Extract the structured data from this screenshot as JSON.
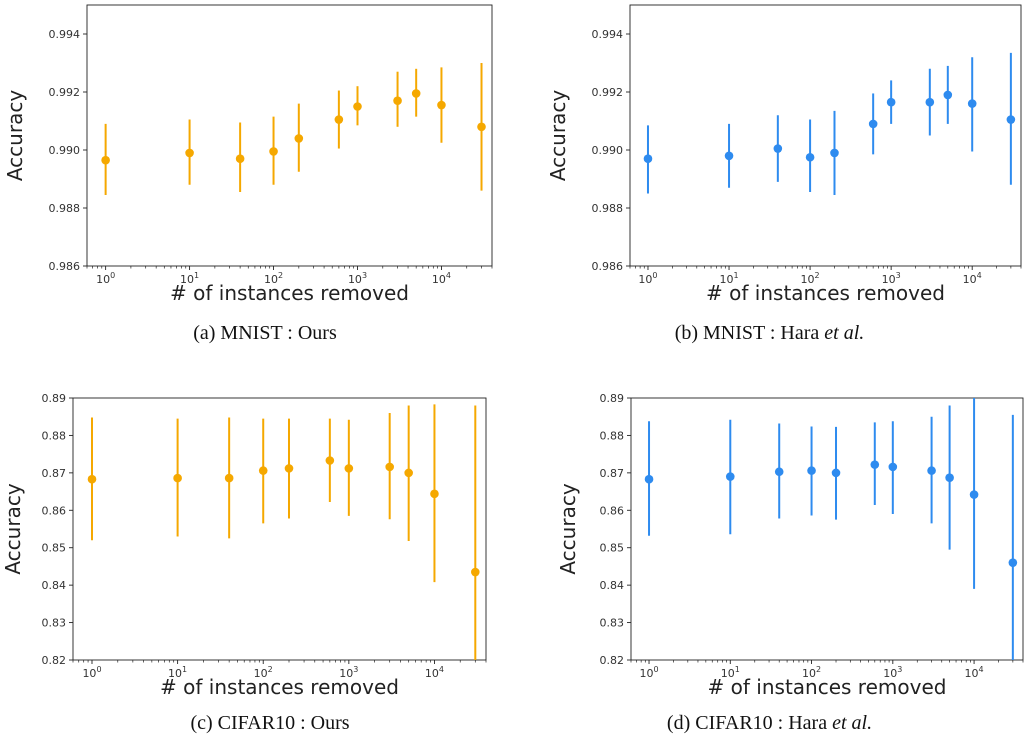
{
  "panels": [
    {
      "caption_pre": "(a) MNIST : Ours",
      "caption_em": "",
      "caption_post": ""
    },
    {
      "caption_pre": "(b) MNIST : Hara ",
      "caption_em": "et al.",
      "caption_post": ""
    },
    {
      "caption_pre": "(c) CIFAR10 : Ours",
      "caption_em": "",
      "caption_post": ""
    },
    {
      "caption_pre": "(d) CIFAR10 : Hara ",
      "caption_em": "et al.",
      "caption_post": ""
    }
  ],
  "colors": {
    "ours": "#F5A800",
    "hara": "#2E8BEF"
  },
  "chart_data": [
    {
      "type": "scatter",
      "title": "",
      "xlabel": "# of instances removed",
      "ylabel": "Accuracy",
      "xscale": "log",
      "xlim": [
        0.6,
        40000
      ],
      "ylim": [
        0.986,
        0.995
      ],
      "yticks": [
        "0.986",
        "0.988",
        "0.990",
        "0.992",
        "0.994"
      ],
      "yticks_values": [
        0.986,
        0.988,
        0.99,
        0.992,
        0.994
      ],
      "xticks": [
        "10^0",
        "10^1",
        "10^2",
        "10^3",
        "10^4"
      ],
      "xticks_values": [
        1,
        10,
        100,
        1000,
        10000
      ],
      "grid": false,
      "legend": false,
      "color": "#F5A800",
      "points": [
        {
          "x": 1,
          "y": 0.98965,
          "lo": 0.98845,
          "hi": 0.9909
        },
        {
          "x": 10,
          "y": 0.9899,
          "lo": 0.9888,
          "hi": 0.99105
        },
        {
          "x": 40,
          "y": 0.9897,
          "lo": 0.98855,
          "hi": 0.99095
        },
        {
          "x": 100,
          "y": 0.98995,
          "lo": 0.9888,
          "hi": 0.99115
        },
        {
          "x": 200,
          "y": 0.9904,
          "lo": 0.98925,
          "hi": 0.9916
        },
        {
          "x": 600,
          "y": 0.99105,
          "lo": 0.99005,
          "hi": 0.99205
        },
        {
          "x": 1000,
          "y": 0.9915,
          "lo": 0.99085,
          "hi": 0.9922
        },
        {
          "x": 3000,
          "y": 0.9917,
          "lo": 0.9908,
          "hi": 0.9927
        },
        {
          "x": 5000,
          "y": 0.99195,
          "lo": 0.99115,
          "hi": 0.9928
        },
        {
          "x": 10000,
          "y": 0.99155,
          "lo": 0.99025,
          "hi": 0.99285
        },
        {
          "x": 30000,
          "y": 0.9908,
          "lo": 0.9886,
          "hi": 0.993
        }
      ]
    },
    {
      "type": "scatter",
      "title": "",
      "xlabel": "# of instances removed",
      "ylabel": "Accuracy",
      "xscale": "log",
      "xlim": [
        0.6,
        40000
      ],
      "ylim": [
        0.986,
        0.995
      ],
      "yticks": [
        "0.986",
        "0.988",
        "0.990",
        "0.992",
        "0.994"
      ],
      "yticks_values": [
        0.986,
        0.988,
        0.99,
        0.992,
        0.994
      ],
      "xticks": [
        "10^0",
        "10^1",
        "10^2",
        "10^3",
        "10^4"
      ],
      "xticks_values": [
        1,
        10,
        100,
        1000,
        10000
      ],
      "grid": false,
      "legend": false,
      "color": "#2E8BEF",
      "points": [
        {
          "x": 1,
          "y": 0.9897,
          "lo": 0.9885,
          "hi": 0.99085
        },
        {
          "x": 10,
          "y": 0.9898,
          "lo": 0.9887,
          "hi": 0.9909
        },
        {
          "x": 40,
          "y": 0.99005,
          "lo": 0.9889,
          "hi": 0.9912
        },
        {
          "x": 100,
          "y": 0.98975,
          "lo": 0.98855,
          "hi": 0.99105
        },
        {
          "x": 200,
          "y": 0.9899,
          "lo": 0.98845,
          "hi": 0.99135
        },
        {
          "x": 600,
          "y": 0.9909,
          "lo": 0.98985,
          "hi": 0.99195
        },
        {
          "x": 1000,
          "y": 0.99165,
          "lo": 0.9909,
          "hi": 0.9924
        },
        {
          "x": 3000,
          "y": 0.99165,
          "lo": 0.9905,
          "hi": 0.9928
        },
        {
          "x": 5000,
          "y": 0.9919,
          "lo": 0.9909,
          "hi": 0.9929
        },
        {
          "x": 10000,
          "y": 0.9916,
          "lo": 0.98995,
          "hi": 0.9932
        },
        {
          "x": 30000,
          "y": 0.99105,
          "lo": 0.9888,
          "hi": 0.99335
        }
      ]
    },
    {
      "type": "scatter",
      "title": "",
      "xlabel": "# of instances removed",
      "ylabel": "Accuracy",
      "xscale": "log",
      "xlim": [
        0.6,
        40000
      ],
      "ylim": [
        0.82,
        0.89
      ],
      "yticks": [
        "0.82",
        "0.83",
        "0.84",
        "0.85",
        "0.86",
        "0.87",
        "0.88",
        "0.89"
      ],
      "yticks_values": [
        0.82,
        0.83,
        0.84,
        0.85,
        0.86,
        0.87,
        0.88,
        0.89
      ],
      "xticks": [
        "10^0",
        "10^1",
        "10^2",
        "10^3",
        "10^4"
      ],
      "xticks_values": [
        1,
        10,
        100,
        1000,
        10000
      ],
      "grid": false,
      "legend": false,
      "color": "#F5A800",
      "points": [
        {
          "x": 1,
          "y": 0.8683,
          "lo": 0.852,
          "hi": 0.8848
        },
        {
          "x": 10,
          "y": 0.8686,
          "lo": 0.853,
          "hi": 0.8845
        },
        {
          "x": 40,
          "y": 0.8686,
          "lo": 0.8525,
          "hi": 0.8848
        },
        {
          "x": 100,
          "y": 0.8706,
          "lo": 0.8565,
          "hi": 0.8845
        },
        {
          "x": 200,
          "y": 0.8712,
          "lo": 0.8578,
          "hi": 0.8845
        },
        {
          "x": 600,
          "y": 0.8733,
          "lo": 0.8622,
          "hi": 0.8845
        },
        {
          "x": 1000,
          "y": 0.8712,
          "lo": 0.8585,
          "hi": 0.8842
        },
        {
          "x": 3000,
          "y": 0.8716,
          "lo": 0.8576,
          "hi": 0.886
        },
        {
          "x": 5000,
          "y": 0.87,
          "lo": 0.8518,
          "hi": 0.888
        },
        {
          "x": 10000,
          "y": 0.8644,
          "lo": 0.8408,
          "hi": 0.8883
        },
        {
          "x": 30000,
          "y": 0.8435,
          "lo": 0.82,
          "hi": 0.888
        }
      ]
    },
    {
      "type": "scatter",
      "title": "",
      "xlabel": "# of instances removed",
      "ylabel": "Accuracy",
      "xscale": "log",
      "xlim": [
        0.6,
        40000
      ],
      "ylim": [
        0.82,
        0.89
      ],
      "yticks": [
        "0.82",
        "0.83",
        "0.84",
        "0.85",
        "0.86",
        "0.87",
        "0.88",
        "0.89"
      ],
      "yticks_values": [
        0.82,
        0.83,
        0.84,
        0.85,
        0.86,
        0.87,
        0.88,
        0.89
      ],
      "xticks": [
        "10^0",
        "10^1",
        "10^2",
        "10^3",
        "10^4"
      ],
      "xticks_values": [
        1,
        10,
        100,
        1000,
        10000
      ],
      "grid": false,
      "legend": false,
      "color": "#2E8BEF",
      "points": [
        {
          "x": 1,
          "y": 0.8683,
          "lo": 0.8532,
          "hi": 0.8838
        },
        {
          "x": 10,
          "y": 0.869,
          "lo": 0.8536,
          "hi": 0.8842
        },
        {
          "x": 40,
          "y": 0.8703,
          "lo": 0.8578,
          "hi": 0.8832
        },
        {
          "x": 100,
          "y": 0.8706,
          "lo": 0.8586,
          "hi": 0.8824
        },
        {
          "x": 200,
          "y": 0.87,
          "lo": 0.8575,
          "hi": 0.8823
        },
        {
          "x": 600,
          "y": 0.8722,
          "lo": 0.8614,
          "hi": 0.8835
        },
        {
          "x": 1000,
          "y": 0.8716,
          "lo": 0.859,
          "hi": 0.8838
        },
        {
          "x": 3000,
          "y": 0.8706,
          "lo": 0.8565,
          "hi": 0.885
        },
        {
          "x": 5000,
          "y": 0.8687,
          "lo": 0.8495,
          "hi": 0.888
        },
        {
          "x": 10000,
          "y": 0.8642,
          "lo": 0.839,
          "hi": 0.8905
        },
        {
          "x": 30000,
          "y": 0.846,
          "lo": 0.82,
          "hi": 0.8855
        }
      ]
    }
  ]
}
